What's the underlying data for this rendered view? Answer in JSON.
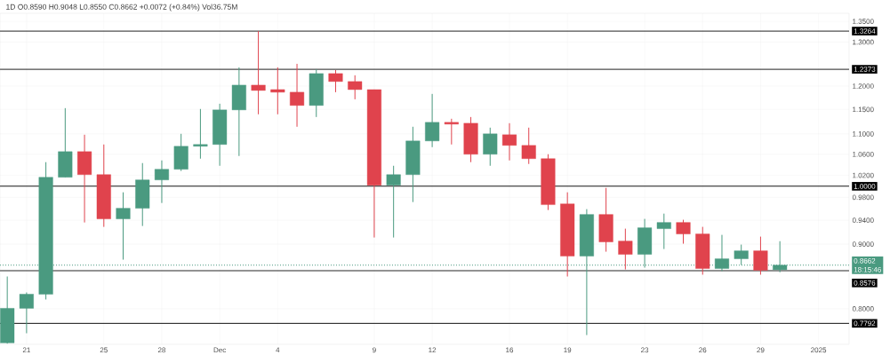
{
  "chart_data": {
    "type": "candlestick",
    "title": "1D  O0.8590  H0.9048  L0.8550  C0.8662  +0.0072 (+0.84%)  Vol36.75M",
    "x": [
      "2024-11-20",
      "2024-11-21",
      "2024-11-22",
      "2024-11-23",
      "2024-11-24",
      "2024-11-25",
      "2024-11-26",
      "2024-11-27",
      "2024-11-28",
      "2024-11-29",
      "2024-11-30",
      "2024-12-01",
      "2024-12-02",
      "2024-12-03",
      "2024-12-04",
      "2024-12-05",
      "2024-12-06",
      "2024-12-07",
      "2024-12-08",
      "2024-12-09",
      "2024-12-10",
      "2024-12-11",
      "2024-12-12",
      "2024-12-13",
      "2024-12-14",
      "2024-12-15",
      "2024-12-16",
      "2024-12-17",
      "2024-12-18",
      "2024-12-19",
      "2024-12-20",
      "2024-12-21",
      "2024-12-22",
      "2024-12-23",
      "2024-12-24",
      "2024-12-25",
      "2024-12-26",
      "2024-12-27",
      "2024-12-28",
      "2024-12-29",
      "2024-12-30"
    ],
    "ohlc": [
      [
        0.752,
        0.8485,
        0.751,
        0.8007
      ],
      [
        0.8007,
        0.8242,
        0.7653,
        0.8216
      ],
      [
        0.8216,
        1.0448,
        0.8137,
        1.0165
      ],
      [
        1.0165,
        1.1528,
        1.0165,
        1.0651
      ],
      [
        1.0651,
        1.0983,
        0.9362,
        1.0214
      ],
      [
        1.0214,
        1.079,
        0.9287,
        0.9423
      ],
      [
        0.9423,
        0.989,
        0.8749,
        0.9607
      ],
      [
        0.9607,
        1.0431,
        0.9302,
        1.0116
      ],
      [
        1.0116,
        1.0481,
        0.97,
        1.0314
      ],
      [
        1.0314,
        1.1001,
        1.0281,
        1.0755
      ],
      [
        1.0755,
        1.151,
        1.0515,
        1.079
      ],
      [
        1.079,
        1.1621,
        1.038,
        1.1491
      ],
      [
        1.1491,
        1.2416,
        1.0566,
        1.2021
      ],
      [
        1.2021,
        1.3264,
        1.1399,
        1.1905
      ],
      [
        1.1924,
        1.2416,
        1.1399,
        1.1867
      ],
      [
        1.1867,
        1.2496,
        1.1144,
        1.1584
      ],
      [
        1.1584,
        1.2375,
        1.1343,
        1.2277
      ],
      [
        1.2277,
        1.2356,
        1.1867,
        1.21
      ],
      [
        1.21,
        1.2238,
        1.1715,
        1.1924
      ],
      [
        1.1924,
        1.1924,
        0.9109,
        1.0019
      ],
      [
        1.0019,
        1.038,
        0.9109,
        1.0214
      ],
      [
        1.0214,
        1.1144,
        0.9716,
        1.086
      ],
      [
        1.086,
        1.183,
        1.0738,
        1.1234
      ],
      [
        1.1234,
        1.1307,
        1.079,
        1.1197
      ],
      [
        1.1215,
        1.1343,
        1.0448,
        1.06
      ],
      [
        1.06,
        1.1126,
        1.038,
        1.1001
      ],
      [
        1.0983,
        1.1216,
        1.0481,
        1.0772
      ],
      [
        1.0772,
        1.1126,
        1.0414,
        1.0515
      ],
      [
        1.0515,
        1.06,
        0.9576,
        0.967
      ],
      [
        0.9685,
        0.989,
        0.8485,
        0.8806
      ],
      [
        0.8806,
        0.9592,
        0.7628,
        0.9499
      ],
      [
        0.9499,
        0.997,
        0.8877,
        0.9036
      ],
      [
        0.905,
        0.9257,
        0.8595,
        0.8834
      ],
      [
        0.8834,
        0.9423,
        0.8623,
        0.9272
      ],
      [
        0.9257,
        0.9514,
        0.892,
        0.9362
      ],
      [
        0.9362,
        0.9408,
        0.9007,
        0.9168
      ],
      [
        0.9168,
        0.9287,
        0.8513,
        0.8609
      ],
      [
        0.8609,
        0.9153,
        0.8568,
        0.8763
      ],
      [
        0.8763,
        0.8992,
        0.8665,
        0.8891
      ],
      [
        0.8891,
        0.9124,
        0.8513,
        0.8581
      ],
      [
        0.859,
        0.9048,
        0.855,
        0.8662
      ]
    ],
    "colors": [
      "#4a9a80",
      "#4a9a80",
      "#4a9a80",
      "#4a9a80",
      "#e0434d",
      "#e0434d",
      "#4a9a80",
      "#4a9a80",
      "#4a9a80",
      "#4a9a80",
      "#4a9a80",
      "#4a9a80",
      "#4a9a80",
      "#e0434d",
      "#e0434d",
      "#e0434d",
      "#4a9a80",
      "#e0434d",
      "#e0434d",
      "#e0434d",
      "#4a9a80",
      "#4a9a80",
      "#4a9a80",
      "#e0434d",
      "#e0434d",
      "#4a9a80",
      "#e0434d",
      "#e0434d",
      "#e0434d",
      "#e0434d",
      "#4a9a80",
      "#e0434d",
      "#e0434d",
      "#4a9a80",
      "#4a9a80",
      "#e0434d",
      "#e0434d",
      "#4a9a80",
      "#4a9a80",
      "#e0434d",
      "#4a9a80"
    ],
    "xlim": [
      "2024-11-19T15:00",
      "2025-01-02T14:00"
    ],
    "xticks": [
      {
        "value": "2024-11-21",
        "label": "21"
      },
      {
        "value": "2024-11-25",
        "label": "25"
      },
      {
        "value": "2024-11-28",
        "label": "28"
      },
      {
        "value": "2024-12-01",
        "label": "Dec"
      },
      {
        "value": "2024-12-04",
        "label": "4"
      },
      {
        "value": "2024-12-09",
        "label": "9"
      },
      {
        "value": "2024-12-12",
        "label": "12"
      },
      {
        "value": "2024-12-16",
        "label": "16"
      },
      {
        "value": "2024-12-19",
        "label": "19"
      },
      {
        "value": "2024-12-23",
        "label": "23"
      },
      {
        "value": "2024-12-26",
        "label": "26"
      },
      {
        "value": "2024-12-29",
        "label": "29"
      },
      {
        "value": "2025-01-01",
        "label": "2025"
      }
    ],
    "ylim": [
      0.75,
      1.37
    ],
    "yticks": [
      {
        "value": 1.35,
        "label": "1.3500"
      },
      {
        "value": 1.3,
        "label": "1.3000"
      },
      {
        "value": 1.2,
        "label": "1.2000"
      },
      {
        "value": 1.15,
        "label": "1.1500"
      },
      {
        "value": 1.1,
        "label": "1.1000"
      },
      {
        "value": 1.06,
        "label": "1.0600"
      },
      {
        "value": 1.02,
        "label": "1.0200"
      },
      {
        "value": 0.98,
        "label": "0.9800"
      },
      {
        "value": 0.94,
        "label": "0.9400"
      },
      {
        "value": 0.9,
        "label": "0.9000"
      },
      {
        "value": 0.8,
        "label": "0.8000"
      }
    ],
    "log": "y",
    "grid": true,
    "ref_lines": [
      {
        "axis": "y",
        "value": 1.3264,
        "label": "1.3264",
        "color": "#000000",
        "line_style": "solid"
      },
      {
        "axis": "y",
        "value": 1.2373,
        "label": "1.2373",
        "color": "#000000",
        "line_style": "solid"
      },
      {
        "axis": "y",
        "value": 1.0,
        "label": "1.0000",
        "color": "#000000",
        "line_style": "solid"
      },
      {
        "axis": "y",
        "value": 0.8662,
        "label": "0.8662",
        "color": "#4a9a80",
        "line_style": "dotted"
      },
      {
        "axis": "y",
        "value": 0.8576,
        "label": "0.8576",
        "color": "#000000",
        "line_style": "solid"
      },
      {
        "axis": "y",
        "value": 0.7792,
        "label": "0.7792",
        "color": "#000000",
        "line_style": "solid"
      }
    ],
    "annotations": [
      "18:15:46"
    ]
  }
}
